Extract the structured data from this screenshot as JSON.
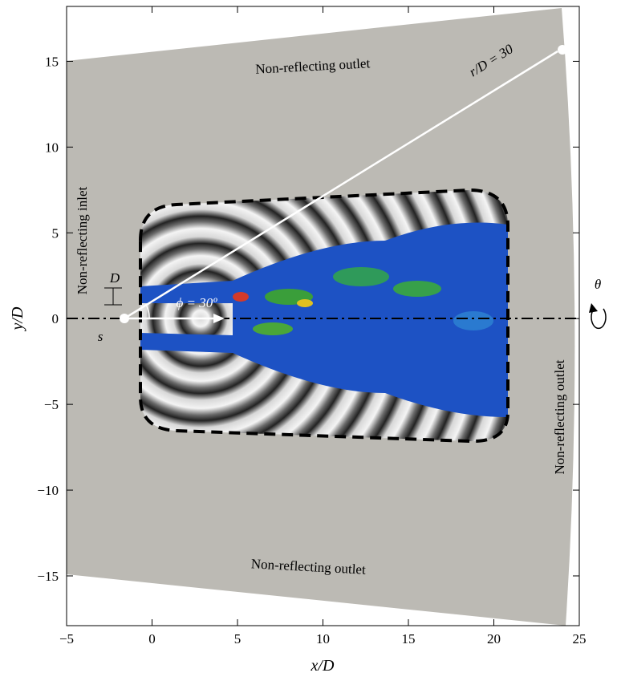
{
  "chart_data": {
    "type": "domain",
    "xlabel": "x/D",
    "ylabel": "y/D",
    "xlim": [
      -5,
      25
    ],
    "ylim": [
      -17.9,
      18.2
    ],
    "xticks": [
      {
        "value": -5,
        "label": "−5"
      },
      0,
      5,
      10,
      15,
      20,
      25
    ],
    "yticks": [
      {
        "value": -15,
        "label": "−15"
      },
      {
        "value": -10,
        "label": "−10"
      },
      {
        "value": -5,
        "label": "−5"
      },
      0,
      5,
      10,
      15
    ],
    "annotations": {
      "top_outlet": "Non-reflecting outlet",
      "bottom_outlet": "Non-reflecting outlet",
      "right_outlet": "Non-reflecting outlet",
      "left_inlet": "Non-reflecting inlet",
      "radius": "r/D = 30",
      "angle": "ϕ = 30º",
      "diameter": "D",
      "spacing": "s",
      "theta": "θ"
    }
  }
}
